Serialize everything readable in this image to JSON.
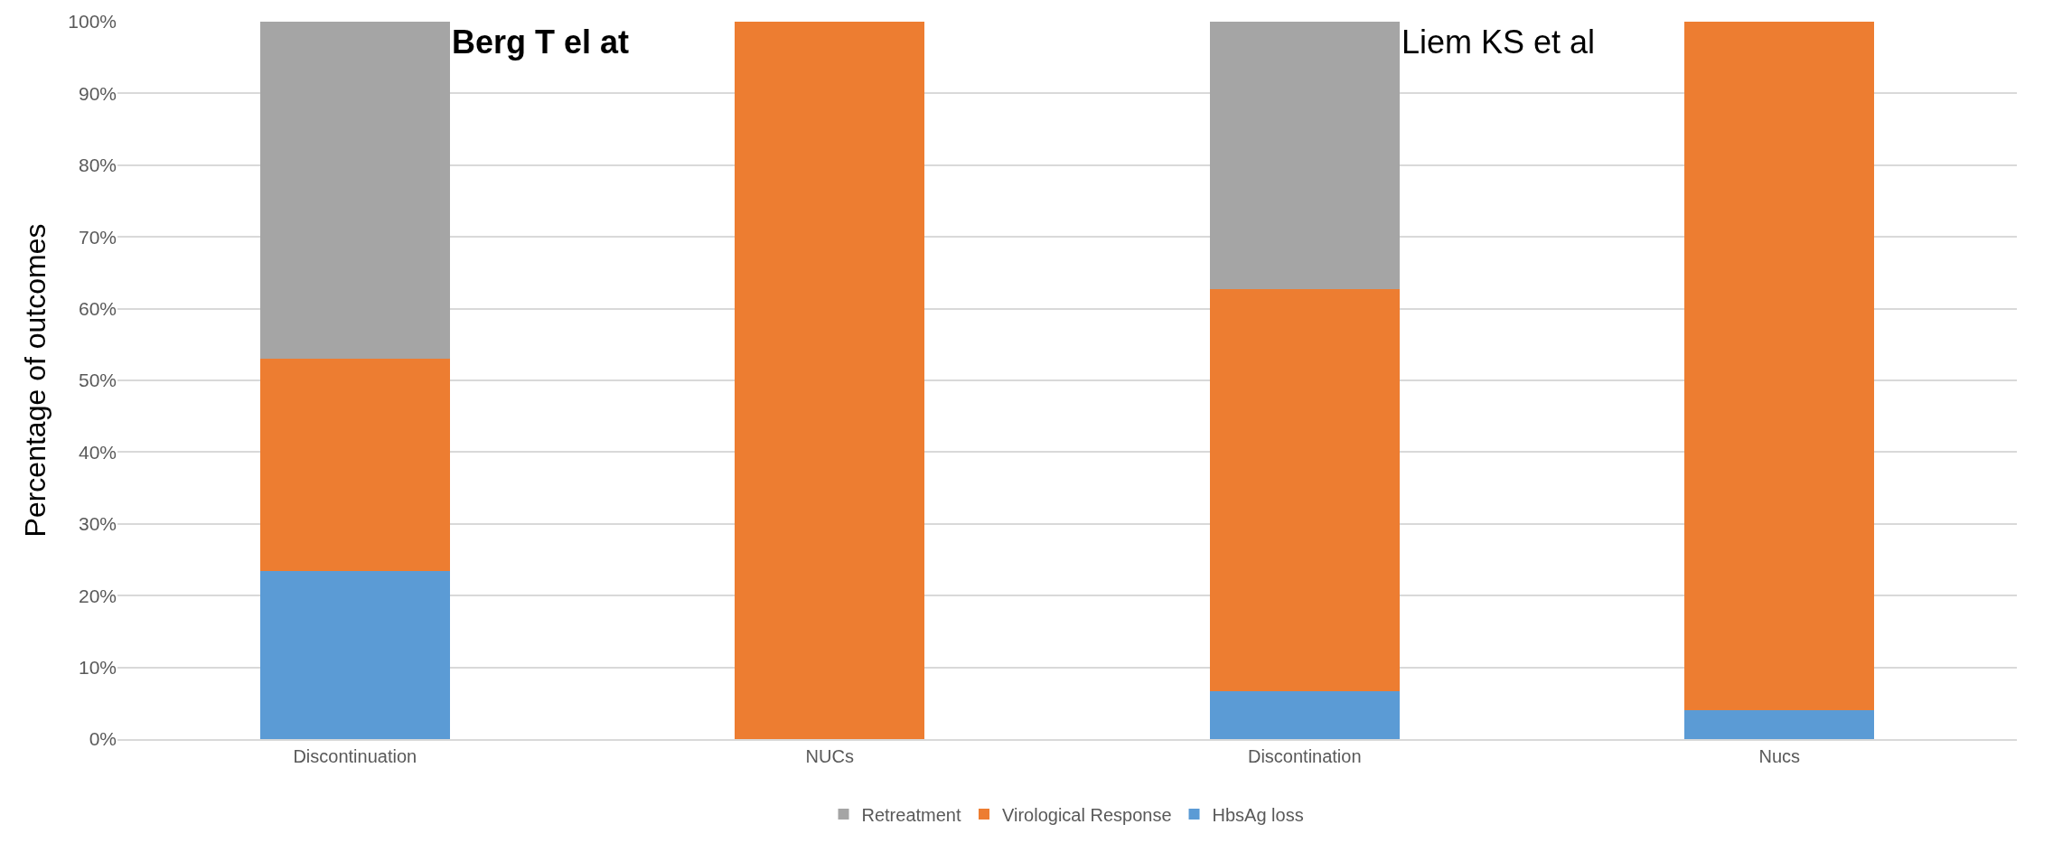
{
  "chart_data": {
    "type": "bar",
    "stacked": true,
    "ylabel": "Percentage of outcomes",
    "categories": [
      "Discontinuation",
      "NUCs",
      "Discontination",
      "Nucs"
    ],
    "series": [
      {
        "name": "HbsAg loss",
        "color": "#5b9bd5",
        "values": [
          23.4,
          0,
          6.7,
          4.0
        ]
      },
      {
        "name": "Virological Response",
        "color": "#ed7d31",
        "values": [
          29.6,
          100,
          56.0,
          96.0
        ]
      },
      {
        "name": "Retreatment",
        "color": "#a5a5a5",
        "values": [
          47.0,
          0,
          37.3,
          0
        ]
      }
    ],
    "ylim": [
      0,
      100
    ],
    "yticks": [
      {
        "value": 0,
        "label": "0%"
      },
      {
        "value": 10,
        "label": "10%"
      },
      {
        "value": 20,
        "label": "20%"
      },
      {
        "value": 30,
        "label": "30%"
      },
      {
        "value": 40,
        "label": "40%"
      },
      {
        "value": 50,
        "label": "50%"
      },
      {
        "value": 60,
        "label": "60%"
      },
      {
        "value": 70,
        "label": "70%"
      },
      {
        "value": 80,
        "label": "80%"
      },
      {
        "value": 90,
        "label": "90%"
      },
      {
        "value": 100,
        "label": "100%"
      }
    ],
    "annotations": [
      "Berg T el at",
      "Liem KS et al"
    ],
    "grid": "y",
    "legend": "bottom"
  }
}
